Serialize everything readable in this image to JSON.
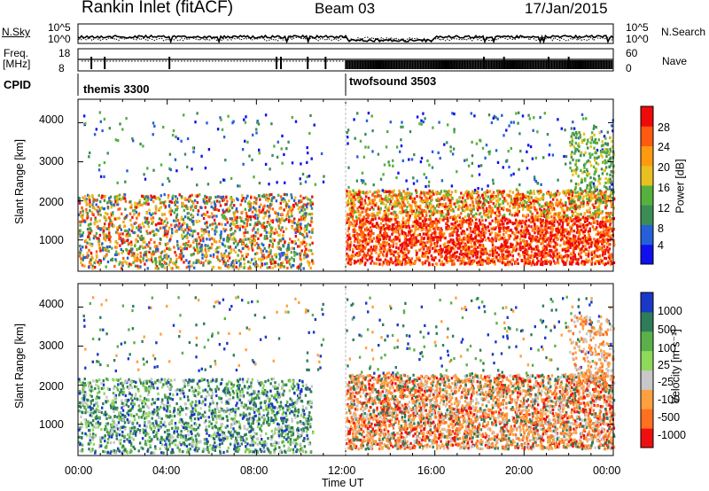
{
  "header": {
    "station": "Rankin Inlet (fitACF)",
    "beam": "Beam 03",
    "date": "17/Jan/2015"
  },
  "top_panels": {
    "nsky_label": "N.Sky",
    "nsky_ticks": [
      "10^5",
      "10^0"
    ],
    "nsearch_label": "N.Search",
    "nsearch_ticks": [
      "10^5",
      "10^0"
    ],
    "freq_label": "Freq.",
    "freq_unit": "[MHz]",
    "freq_ticks": [
      "18",
      "8"
    ],
    "nave_label": "Nave",
    "nave_ticks": [
      "60",
      "0"
    ],
    "cpid_label": "CPID",
    "cpid_entries": [
      {
        "name": "themis 3300",
        "start_hour": 0
      },
      {
        "name": "twofsound 3503",
        "start_hour": 12
      }
    ]
  },
  "chart_data": [
    {
      "type": "heatmap",
      "title": "",
      "xlabel": "",
      "ylabel": "Slant Range [km]",
      "x_range_hours": [
        0,
        24
      ],
      "y_range_km": [
        200,
        4600
      ],
      "y_ticks": [
        1000,
        2000,
        3000,
        4000
      ],
      "colorbar": {
        "label": "Power [dB]",
        "range": [
          0,
          32
        ],
        "ticks": [
          "4",
          "8",
          "12",
          "16",
          "20",
          "24",
          "28"
        ],
        "colors": [
          "#1010ee",
          "#2560d8",
          "#3c8c55",
          "#55b03c",
          "#e8c020",
          "#ff9a10",
          "#ff5a10",
          "#ee0a0a"
        ]
      }
    },
    {
      "type": "heatmap",
      "title": "",
      "xlabel": "Time UT",
      "ylabel": "Slant Range [km]",
      "x_range_hours": [
        0,
        24
      ],
      "y_range_km": [
        200,
        4600
      ],
      "y_ticks": [
        1000,
        2000,
        3000,
        4000
      ],
      "x_ticks": [
        "00:00",
        "04:00",
        "08:00",
        "12:00",
        "16:00",
        "20:00",
        "00:00"
      ],
      "colorbar": {
        "label": "Velocity [m s⁻¹]",
        "ticks": [
          "1000",
          "500",
          "100",
          "25",
          "-25",
          "-100",
          "-500",
          "-1000"
        ],
        "colors": [
          "#1a38c8",
          "#2e7c5a",
          "#5bb04a",
          "#8ed85a",
          "#c8c8c8",
          "#ffa040",
          "#ff7020",
          "#ee1010"
        ]
      }
    }
  ]
}
